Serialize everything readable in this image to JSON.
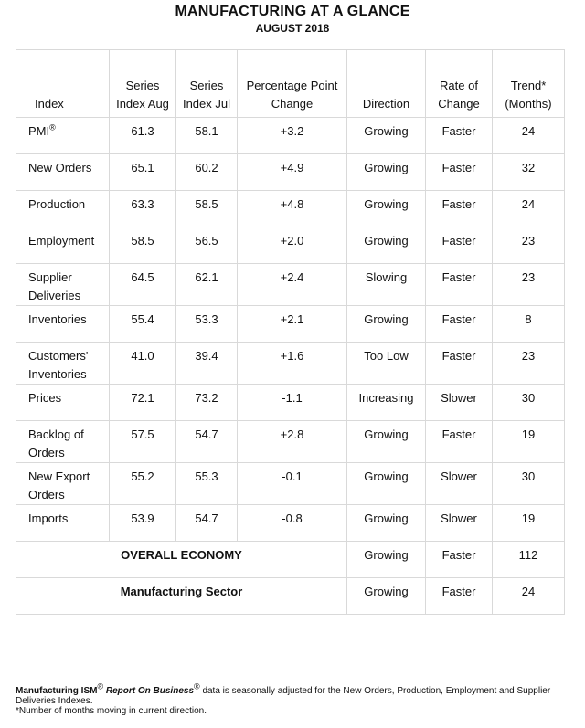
{
  "title": "MANUFACTURING AT A GLANCE",
  "subtitle": "AUGUST 2018",
  "columns": [
    "Index",
    "Series Index Aug",
    "Series Index Jul",
    "Percentage Point Change",
    "Direction",
    "Rate of Change",
    "Trend* (Months)"
  ],
  "rows": [
    {
      "index": "PMI",
      "sup": "®",
      "aug": "61.3",
      "jul": "58.1",
      "change": "+3.2",
      "direction": "Growing",
      "rate": "Faster",
      "trend": "24"
    },
    {
      "index": "New Orders",
      "sup": "",
      "aug": "65.1",
      "jul": "60.2",
      "change": "+4.9",
      "direction": "Growing",
      "rate": "Faster",
      "trend": "32"
    },
    {
      "index": "Production",
      "sup": "",
      "aug": "63.3",
      "jul": "58.5",
      "change": "+4.8",
      "direction": "Growing",
      "rate": "Faster",
      "trend": "24"
    },
    {
      "index": "Employment",
      "sup": "",
      "aug": "58.5",
      "jul": "56.5",
      "change": "+2.0",
      "direction": "Growing",
      "rate": "Faster",
      "trend": "23"
    },
    {
      "index": "Supplier Deliveries",
      "sup": "",
      "aug": "64.5",
      "jul": "62.1",
      "change": "+2.4",
      "direction": "Slowing",
      "rate": "Faster",
      "trend": "23"
    },
    {
      "index": "Inventories",
      "sup": "",
      "aug": "55.4",
      "jul": "53.3",
      "change": "+2.1",
      "direction": "Growing",
      "rate": "Faster",
      "trend": "8"
    },
    {
      "index": "Customers' Inventories",
      "sup": "",
      "aug": "41.0",
      "jul": "39.4",
      "change": "+1.6",
      "direction": "Too Low",
      "rate": "Faster",
      "trend": "23"
    },
    {
      "index": "Prices",
      "sup": "",
      "aug": "72.1",
      "jul": "73.2",
      "change": "-1.1",
      "direction": "Increasing",
      "rate": "Slower",
      "trend": "30"
    },
    {
      "index": "Backlog of Orders",
      "sup": "",
      "aug": "57.5",
      "jul": "54.7",
      "change": "+2.8",
      "direction": "Growing",
      "rate": "Faster",
      "trend": "19"
    },
    {
      "index": "New Export Orders",
      "sup": "",
      "aug": "55.2",
      "jul": "55.3",
      "change": "-0.1",
      "direction": "Growing",
      "rate": "Slower",
      "trend": "30"
    },
    {
      "index": "Imports",
      "sup": "",
      "aug": "53.9",
      "jul": "54.7",
      "change": "-0.8",
      "direction": "Growing",
      "rate": "Slower",
      "trend": "19"
    }
  ],
  "summary": [
    {
      "label": "OVERALL ECONOMY",
      "direction": "Growing",
      "rate": "Faster",
      "trend": "112"
    },
    {
      "label": "Manufacturing Sector",
      "direction": "Growing",
      "rate": "Faster",
      "trend": "24"
    }
  ],
  "footnote": {
    "brand": "Manufacturing ISM",
    "reg": "®",
    "report": "Report On Business",
    "text": "data is seasonally adjusted for the New Orders, Production, Employment and Supplier Deliveries Indexes.",
    "note": "*Number of months moving in current direction."
  }
}
